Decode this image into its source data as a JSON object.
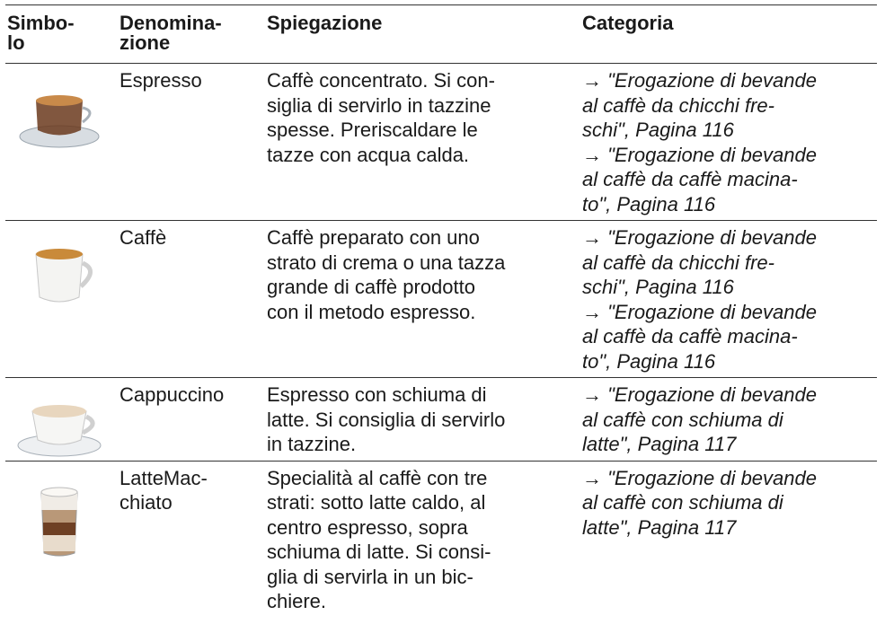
{
  "header": [
    [
      "Simbo-",
      "lo"
    ],
    [
      "Denomina-",
      "zione"
    ],
    [
      "Spiegazione"
    ],
    [
      "Categoria"
    ]
  ],
  "rows": [
    {
      "name": [
        "Espresso"
      ],
      "explanation": [
        "Caffè concentrato. Si con-",
        "siglia di servirlo in tazzine",
        "spesse. Preriscaldare le",
        "tazze con acqua calda."
      ],
      "category": [
        "→ \"Erogazione di bevande",
        "al caffè da chicchi fre-",
        "schi\", Pagina 116",
        "→ \"Erogazione di bevande",
        "al caffè da caffè macina-",
        "to\", Pagina 116"
      ]
    },
    {
      "name": [
        "Caffè"
      ],
      "explanation": [
        "Caffè preparato con uno",
        "strato di crema o una tazza",
        "grande di caffè prodotto",
        "con il metodo espresso."
      ],
      "category": [
        "→ \"Erogazione di bevande",
        "al caffè da chicchi fre-",
        "schi\", Pagina 116",
        "→ \"Erogazione di bevande",
        "al caffè da caffè macina-",
        "to\", Pagina 116"
      ]
    },
    {
      "name": [
        "Cappuccino"
      ],
      "explanation": [
        "Espresso con schiuma di",
        "latte. Si consiglia di servirlo",
        "in tazzine."
      ],
      "category": [
        "→ \"Erogazione di bevande",
        "al caffè con schiuma di",
        "latte\", Pagina 117"
      ]
    },
    {
      "name": [
        "LatteMac-",
        "chiato"
      ],
      "explanation": [
        "Specialità al caffè con tre",
        "strati: sotto latte caldo, al",
        "centro espresso, sopra",
        "schiuma di latte. Si consi-",
        "glia di servirla in un bic-",
        "chiere."
      ],
      "category": [
        "→ \"Erogazione di bevande",
        "al caffè con schiuma di",
        "latte\", Pagina 117"
      ]
    }
  ]
}
